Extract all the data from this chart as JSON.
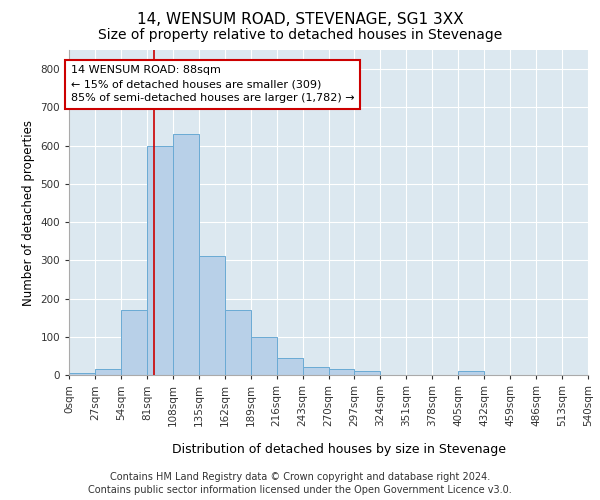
{
  "title": "14, WENSUM ROAD, STEVENAGE, SG1 3XX",
  "subtitle": "Size of property relative to detached houses in Stevenage",
  "xlabel": "Distribution of detached houses by size in Stevenage",
  "ylabel": "Number of detached properties",
  "bin_edges": [
    0,
    27,
    54,
    81,
    108,
    135,
    162,
    189,
    216,
    243,
    270,
    297,
    324,
    351,
    378,
    405,
    432,
    459,
    486,
    513,
    540
  ],
  "bar_heights": [
    5,
    15,
    170,
    600,
    630,
    310,
    170,
    100,
    45,
    20,
    15,
    10,
    0,
    0,
    0,
    10,
    0,
    0,
    0,
    0
  ],
  "bar_color": "#b8d0e8",
  "bar_edge_color": "#6aaad4",
  "vline_x": 88,
  "vline_color": "#cc0000",
  "annotation_text": "14 WENSUM ROAD: 88sqm\n← 15% of detached houses are smaller (309)\n85% of semi-detached houses are larger (1,782) →",
  "annotation_box_color": "#ffffff",
  "annotation_border_color": "#cc0000",
  "ylim": [
    0,
    850
  ],
  "yticks": [
    0,
    100,
    200,
    300,
    400,
    500,
    600,
    700,
    800
  ],
  "bg_color": "#dce8f0",
  "footer_line1": "Contains HM Land Registry data © Crown copyright and database right 2024.",
  "footer_line2": "Contains public sector information licensed under the Open Government Licence v3.0.",
  "title_fontsize": 11,
  "subtitle_fontsize": 10,
  "ylabel_fontsize": 8.5,
  "tick_label_fontsize": 7.5,
  "footer_fontsize": 7,
  "xlabel_fontsize": 9
}
